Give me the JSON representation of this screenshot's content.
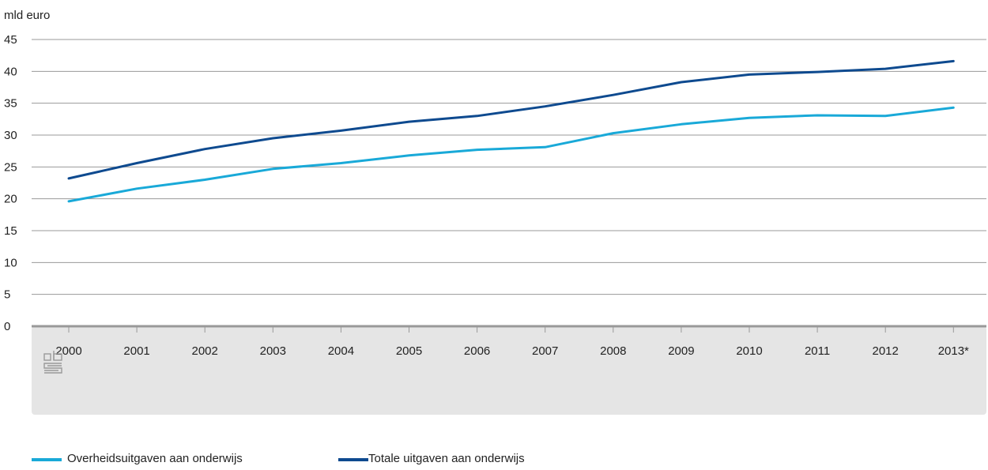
{
  "chart_data": {
    "type": "line",
    "ylabel": "mld euro",
    "ylim": [
      0,
      45
    ],
    "yticks": [
      0,
      5,
      10,
      15,
      20,
      25,
      30,
      35,
      40,
      45
    ],
    "categories": [
      "2000",
      "2001",
      "2002",
      "2003",
      "2004",
      "2005",
      "2006",
      "2007",
      "2008",
      "2009",
      "2010",
      "2011",
      "2012",
      "2013*"
    ],
    "series": [
      {
        "name": "Overheidsuitgaven aan onderwijs",
        "color": "#19a9d8",
        "values": [
          19.6,
          21.6,
          23.0,
          24.7,
          25.6,
          26.8,
          27.7,
          28.1,
          30.3,
          31.7,
          32.7,
          33.1,
          33.0,
          34.3
        ]
      },
      {
        "name": "Totale uitgaven aan onderwijs",
        "color": "#0e4a8f",
        "values": [
          23.2,
          25.6,
          27.8,
          29.5,
          30.7,
          32.1,
          33.0,
          34.5,
          36.3,
          38.3,
          39.5,
          39.9,
          40.4,
          41.6
        ]
      }
    ],
    "grid": true,
    "legend": "bottom-left"
  },
  "logo": {
    "icon": "cbs-logo-icon",
    "text": "cbs"
  },
  "colors": {
    "axis_band": "#e5e5e5",
    "axis_line": "#999999",
    "grid": "#999999"
  }
}
